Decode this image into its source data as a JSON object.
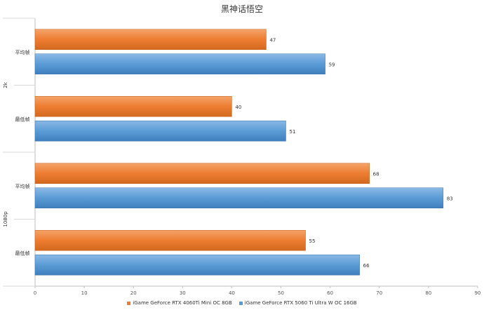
{
  "chart_data": {
    "type": "bar",
    "orientation": "horizontal",
    "title": "黑神话悟空",
    "groups": [
      {
        "name": "2k",
        "categories": [
          "平均帧",
          "最低帧"
        ]
      },
      {
        "name": "1080p",
        "categories": [
          "平均帧",
          "最低帧"
        ]
      }
    ],
    "series": [
      {
        "name": "iGame GeForce RTX 4060Ti Mini OC 8GB",
        "color": "#ed7d31",
        "values": [
          47,
          40,
          68,
          55
        ]
      },
      {
        "name": "iGame GeForce RTX 5060 Ti Ultra W OC 16GB",
        "color": "#5b9bd5",
        "values": [
          59,
          51,
          83,
          66
        ]
      }
    ],
    "xlim": [
      0,
      90
    ],
    "xticks": [
      0,
      10,
      20,
      30,
      40,
      50,
      60,
      70,
      80,
      90
    ],
    "grid": false,
    "legend_position": "bottom"
  }
}
